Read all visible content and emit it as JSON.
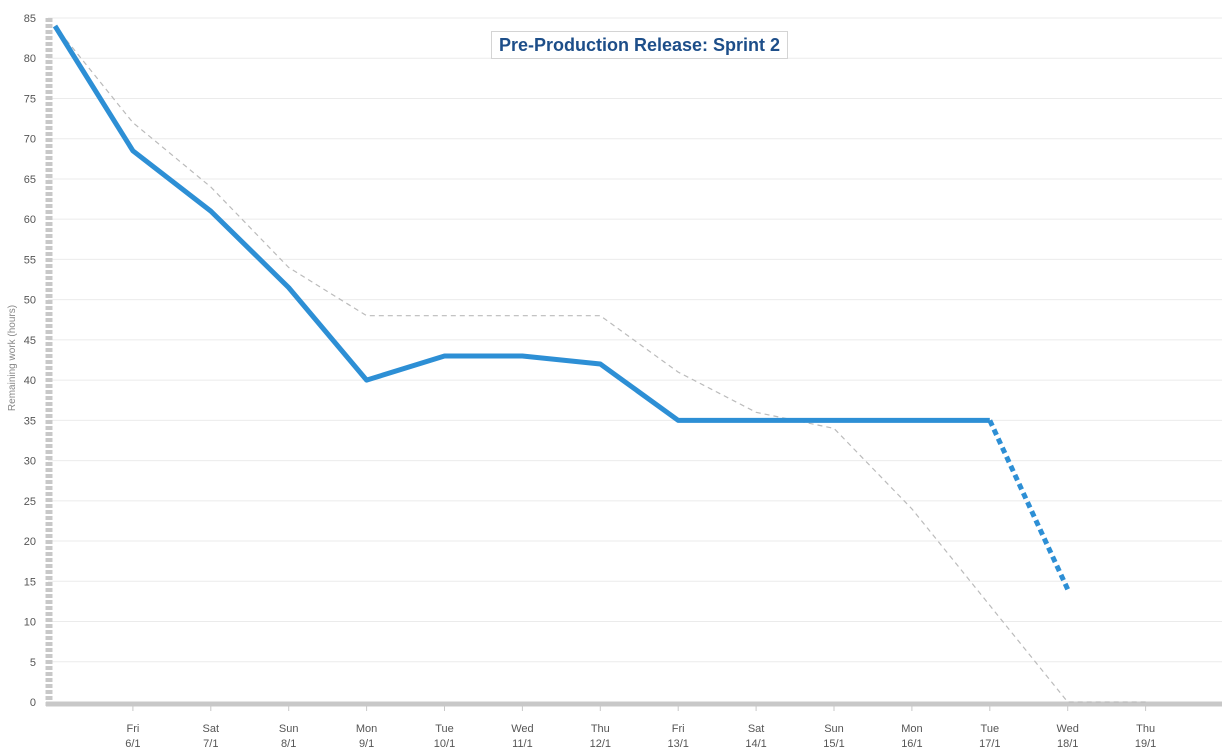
{
  "chart_data": {
    "type": "line",
    "title": "Pre-Production Release: Sprint 2",
    "ylabel": "Remaining work (hours)",
    "xlabel": "",
    "ylim": [
      0,
      85
    ],
    "yticks": [
      0,
      5,
      10,
      15,
      20,
      25,
      30,
      35,
      40,
      45,
      50,
      55,
      60,
      65,
      70,
      75,
      80,
      85
    ],
    "categories": [
      {
        "day": "",
        "date": ""
      },
      {
        "day": "Fri",
        "date": "6/1"
      },
      {
        "day": "Sat",
        "date": "7/1"
      },
      {
        "day": "Sun",
        "date": "8/1"
      },
      {
        "day": "Mon",
        "date": "9/1"
      },
      {
        "day": "Tue",
        "date": "10/1"
      },
      {
        "day": "Wed",
        "date": "11/1"
      },
      {
        "day": "Thu",
        "date": "12/1"
      },
      {
        "day": "Fri",
        "date": "13/1"
      },
      {
        "day": "Sat",
        "date": "14/1"
      },
      {
        "day": "Sun",
        "date": "15/1"
      },
      {
        "day": "Mon",
        "date": "16/1"
      },
      {
        "day": "Tue",
        "date": "17/1"
      },
      {
        "day": "Wed",
        "date": "18/1"
      },
      {
        "day": "Thu",
        "date": "19/1"
      }
    ],
    "series": [
      {
        "style": "actual",
        "color": "#2d8fd5",
        "values": [
          84,
          68.5,
          61,
          51.5,
          40,
          43,
          43,
          42,
          35,
          35,
          35,
          35,
          35,
          null,
          null
        ]
      },
      {
        "style": "projected",
        "color": "#2d8fd5",
        "values": [
          null,
          null,
          null,
          null,
          null,
          null,
          null,
          null,
          null,
          null,
          null,
          null,
          35,
          14,
          null
        ]
      },
      {
        "style": "ideal",
        "color": "#bbbbbb",
        "values": [
          84,
          72,
          64,
          54,
          48,
          48,
          48,
          48,
          41,
          36,
          34,
          24,
          12,
          0,
          0
        ]
      }
    ],
    "grid": true,
    "legend": "none"
  },
  "colors": {
    "axis": "#c8c8c8",
    "grid": "#ebebeb",
    "title": "#1d4e89"
  }
}
